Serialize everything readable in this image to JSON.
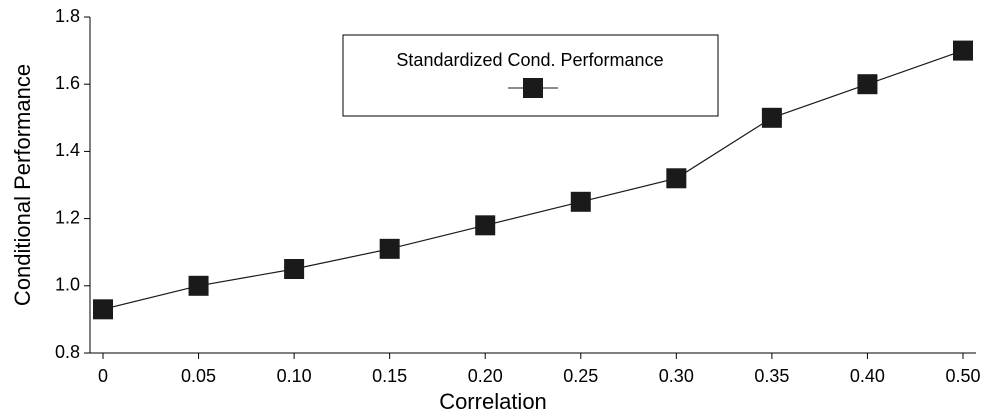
{
  "chart_data": {
    "type": "line",
    "x_label": "Correlation",
    "y_label": "Conditional Performance",
    "categories": [
      "0",
      "0.05",
      "0.10",
      "0.15",
      "0.20",
      "0.25",
      "0.30",
      "0.35",
      "0.40",
      "0.50"
    ],
    "series": [
      {
        "name": "Standardized Cond. Performance",
        "color": "#1a1a1a",
        "values": [
          0.93,
          1.0,
          1.05,
          1.11,
          1.18,
          1.25,
          1.32,
          1.5,
          1.6,
          1.7
        ]
      }
    ],
    "ylim": [
      0.8,
      1.8
    ],
    "yticks": [
      0.8,
      {
        "value": 1,
        "label": "1.0"
      },
      1.2,
      1.4,
      1.6,
      1.8
    ],
    "legend": "upper center"
  }
}
